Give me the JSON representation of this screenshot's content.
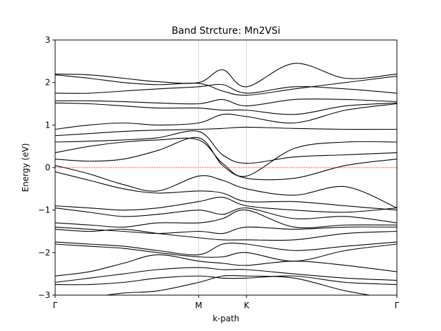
{
  "chart_data": {
    "type": "line",
    "title": "Band Strcture: Mn2VSi",
    "xlabel": "k-path",
    "ylabel": "Energy (eV)",
    "ylim": [
      -3,
      3
    ],
    "xlim": [
      0,
      1
    ],
    "x_ticks": [
      {
        "label": "Γ",
        "x": 0.0
      },
      {
        "label": "M",
        "x": 0.42
      },
      {
        "label": "K",
        "x": 0.56
      },
      {
        "label": "Γ",
        "x": 1.0
      }
    ],
    "y_ticks": [
      -3,
      -2,
      -1,
      0,
      1,
      2,
      3
    ],
    "y_tick_labels": [
      "−3",
      "−2",
      "−1",
      "0",
      "1",
      "2",
      "3"
    ],
    "fermi_level": 0,
    "line_color": "#000000",
    "fermi_color": "#ff0000",
    "vline_color": "#cccccc",
    "series": [
      {
        "x": [
          0,
          0.1,
          0.2,
          0.3,
          0.42,
          0.49,
          0.56,
          0.7,
          0.85,
          1.0
        ],
        "values": [
          2.2,
          2.18,
          2.1,
          2.02,
          2.0,
          2.3,
          1.9,
          2.45,
          2.1,
          2.2
        ]
      },
      {
        "x": [
          0,
          0.1,
          0.2,
          0.3,
          0.42,
          0.49,
          0.56,
          0.7,
          0.85,
          1.0
        ],
        "values": [
          2.18,
          2.1,
          2.0,
          1.95,
          1.98,
          1.8,
          1.7,
          1.85,
          2.0,
          2.15
        ]
      },
      {
        "x": [
          0,
          0.1,
          0.2,
          0.3,
          0.42,
          0.49,
          0.56,
          0.7,
          0.85,
          1.0
        ],
        "values": [
          1.75,
          1.75,
          1.8,
          1.85,
          1.9,
          1.95,
          1.75,
          1.9,
          1.85,
          1.75
        ]
      },
      {
        "x": [
          0,
          0.1,
          0.2,
          0.3,
          0.42,
          0.49,
          0.56,
          0.7,
          0.85,
          1.0
        ],
        "values": [
          1.57,
          1.57,
          1.55,
          1.52,
          1.5,
          1.6,
          1.45,
          1.6,
          1.6,
          1.55
        ]
      },
      {
        "x": [
          0,
          0.1,
          0.2,
          0.3,
          0.42,
          0.49,
          0.56,
          0.7,
          0.85,
          1.0
        ],
        "values": [
          1.52,
          1.5,
          1.45,
          1.4,
          1.4,
          1.35,
          1.35,
          1.25,
          1.45,
          1.52
        ]
      },
      {
        "x": [
          0,
          0.1,
          0.2,
          0.3,
          0.42,
          0.49,
          0.56,
          0.7,
          0.85,
          1.0
        ],
        "values": [
          0.9,
          1.0,
          1.05,
          1.0,
          1.05,
          1.25,
          1.2,
          1.05,
          1.35,
          1.5
        ]
      },
      {
        "x": [
          0,
          0.1,
          0.2,
          0.3,
          0.42,
          0.49,
          0.56,
          0.7,
          0.85,
          1.0
        ],
        "values": [
          0.75,
          0.8,
          0.85,
          0.88,
          0.9,
          0.92,
          0.95,
          0.92,
          0.9,
          0.9
        ]
      },
      {
        "x": [
          0,
          0.1,
          0.2,
          0.3,
          0.42,
          0.49,
          0.56,
          0.7,
          0.85,
          1.0
        ],
        "values": [
          0.6,
          0.62,
          0.65,
          0.7,
          0.85,
          0.3,
          0.1,
          0.25,
          0.3,
          0.35
        ]
      },
      {
        "x": [
          0,
          0.1,
          0.2,
          0.3,
          0.42,
          0.49,
          0.56,
          0.7,
          0.85,
          1.0
        ],
        "values": [
          0.35,
          0.5,
          0.6,
          0.65,
          0.65,
          0.1,
          -0.2,
          0.45,
          0.6,
          0.6
        ]
      },
      {
        "x": [
          0,
          0.1,
          0.2,
          0.3,
          0.42,
          0.49,
          0.56,
          0.7,
          0.85,
          1.0
        ],
        "values": [
          0.2,
          0.15,
          0.2,
          0.4,
          0.7,
          0.05,
          -0.25,
          -0.25,
          0.05,
          0.2
        ]
      },
      {
        "x": [
          0,
          0.1,
          0.2,
          0.3,
          0.42,
          0.49,
          0.56,
          0.7,
          0.85,
          1.0
        ],
        "values": [
          0.05,
          -0.15,
          -0.4,
          -0.55,
          -0.2,
          -0.3,
          -0.5,
          -0.65,
          -0.45,
          -0.95
        ]
      },
      {
        "x": [
          0,
          0.1,
          0.2,
          0.3,
          0.42,
          0.49,
          0.56,
          0.7,
          0.85,
          1.0
        ],
        "values": [
          -0.1,
          -0.3,
          -0.5,
          -0.6,
          -0.55,
          -0.6,
          -0.8,
          -0.8,
          -0.9,
          -1.0
        ]
      },
      {
        "x": [
          0,
          0.1,
          0.2,
          0.3,
          0.42,
          0.49,
          0.56,
          0.7,
          0.85,
          1.0
        ],
        "values": [
          -0.9,
          -0.95,
          -1.0,
          -0.95,
          -0.8,
          -0.7,
          -0.9,
          -1.0,
          -1.05,
          -0.95
        ]
      },
      {
        "x": [
          0,
          0.1,
          0.2,
          0.3,
          0.42,
          0.49,
          0.56,
          0.7,
          0.85,
          1.0
        ],
        "values": [
          -0.95,
          -1.05,
          -1.15,
          -1.1,
          -1.0,
          -1.1,
          -0.95,
          -1.2,
          -1.15,
          -1.3
        ]
      },
      {
        "x": [
          0,
          0.1,
          0.2,
          0.3,
          0.42,
          0.49,
          0.56,
          0.7,
          0.85,
          1.0
        ],
        "values": [
          -1.3,
          -1.35,
          -1.4,
          -1.3,
          -1.3,
          -1.2,
          -1.0,
          -1.4,
          -1.35,
          -1.35
        ]
      },
      {
        "x": [
          0,
          0.1,
          0.2,
          0.3,
          0.42,
          0.49,
          0.56,
          0.7,
          0.85,
          1.0
        ],
        "values": [
          -1.4,
          -1.45,
          -1.5,
          -1.55,
          -1.5,
          -1.55,
          -1.4,
          -1.45,
          -1.4,
          -1.4
        ]
      },
      {
        "x": [
          0,
          0.1,
          0.2,
          0.3,
          0.42,
          0.49,
          0.56,
          0.7,
          0.85,
          1.0
        ],
        "values": [
          -1.45,
          -1.5,
          -1.45,
          -1.55,
          -1.65,
          -1.7,
          -1.7,
          -1.7,
          -1.55,
          -1.5
        ]
      },
      {
        "x": [
          0,
          0.1,
          0.2,
          0.3,
          0.42,
          0.49,
          0.56,
          0.7,
          0.85,
          1.0
        ],
        "values": [
          -1.75,
          -1.8,
          -1.85,
          -1.95,
          -2.05,
          -1.8,
          -1.8,
          -1.95,
          -1.85,
          -1.75
        ]
      },
      {
        "x": [
          0,
          0.1,
          0.2,
          0.3,
          0.42,
          0.49,
          0.56,
          0.7,
          0.85,
          1.0
        ],
        "values": [
          -1.8,
          -1.85,
          -1.9,
          -2.0,
          -2.1,
          -2.1,
          -2.0,
          -2.2,
          -1.95,
          -1.8
        ]
      },
      {
        "x": [
          0,
          0.1,
          0.2,
          0.3,
          0.42,
          0.49,
          0.56,
          0.7,
          0.85,
          1.0
        ],
        "values": [
          -2.55,
          -2.45,
          -2.25,
          -2.05,
          -2.2,
          -2.25,
          -2.3,
          -2.2,
          -2.3,
          -2.45
        ]
      },
      {
        "x": [
          0,
          0.1,
          0.2,
          0.3,
          0.42,
          0.49,
          0.56,
          0.7,
          0.85,
          1.0
        ],
        "values": [
          -2.7,
          -2.6,
          -2.5,
          -2.4,
          -2.35,
          -2.4,
          -2.4,
          -2.5,
          -2.6,
          -2.65
        ]
      },
      {
        "x": [
          0,
          0.1,
          0.2,
          0.3,
          0.42,
          0.49,
          0.56,
          0.7,
          0.85,
          1.0
        ],
        "values": [
          -2.75,
          -2.75,
          -2.7,
          -2.6,
          -2.55,
          -2.6,
          -2.6,
          -2.55,
          -2.7,
          -2.75
        ]
      },
      {
        "x": [
          0,
          0.1,
          0.2,
          0.3,
          0.42,
          0.49,
          0.56,
          0.7,
          0.85,
          1.0
        ],
        "values": [
          -3.1,
          -3.05,
          -2.95,
          -2.9,
          -2.7,
          -2.55,
          -2.55,
          -2.6,
          -2.9,
          -3.1
        ]
      }
    ]
  }
}
